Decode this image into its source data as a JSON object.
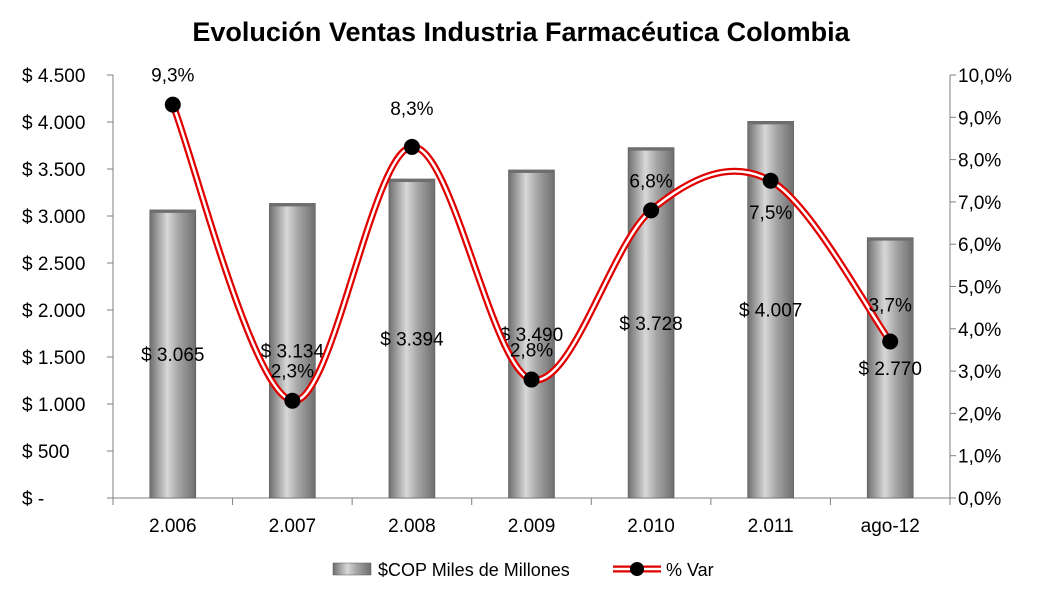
{
  "chart_data": {
    "type": "bar",
    "title": "Evolución Ventas Industria Farmacéutica Colombia",
    "categories": [
      "2.006",
      "2.007",
      "2.008",
      "2.009",
      "2.010",
      "2.011",
      "ago-12"
    ],
    "series": [
      {
        "name": "$COP Miles de Millones",
        "type": "bar",
        "axis": "left",
        "values": [
          3065,
          3134,
          3394,
          3490,
          3728,
          4007,
          2770
        ],
        "labels": [
          "$ 3.065",
          "$ 3.134",
          "$ 3.394",
          "$ 3.490",
          "$ 3.728",
          "$ 4.007",
          "$ 2.770"
        ]
      },
      {
        "name": "% Var",
        "type": "line",
        "axis": "right",
        "smooth": true,
        "values": [
          9.3,
          2.3,
          8.3,
          2.8,
          6.8,
          7.5,
          3.7
        ],
        "labels": [
          "9,3%",
          "2,3%",
          "8,3%",
          "2,8%",
          "6,8%",
          "7,5%",
          "3,7%"
        ]
      }
    ],
    "y_left": {
      "ylim": [
        0,
        4500
      ],
      "ticks": [
        0,
        500,
        1000,
        1500,
        2000,
        2500,
        3000,
        3500,
        4000,
        4500
      ],
      "tick_labels": [
        "$ -",
        "$ 500",
        "$ 1.000",
        "$ 1.500",
        "$ 2.000",
        "$ 2.500",
        "$ 3.000",
        "$ 3.500",
        "$ 4.000",
        "$ 4.500"
      ]
    },
    "y_right": {
      "ylim": [
        0,
        10
      ],
      "ticks": [
        0,
        1,
        2,
        3,
        4,
        5,
        6,
        7,
        8,
        9,
        10
      ],
      "tick_labels": [
        "0,0%",
        "1,0%",
        "2,0%",
        "3,0%",
        "4,0%",
        "5,0%",
        "6,0%",
        "7,0%",
        "8,0%",
        "9,0%",
        "10,0%"
      ]
    },
    "grid": false,
    "legend": "bottom",
    "colors": {
      "bar_light": "#d8d8d8",
      "bar_mid": "#a6a6a6",
      "bar_dark": "#6e6e6e",
      "line_outer": "#e00000",
      "line_inner": "#ffffff",
      "marker": "#000000",
      "axis": "#7f7f7f"
    }
  }
}
